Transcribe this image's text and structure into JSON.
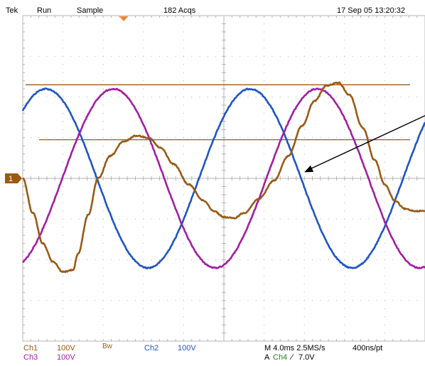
{
  "header": {
    "brand": "Tek",
    "run_state": "Run",
    "acq_mode": "Sample",
    "acq_count": "182 Acqs",
    "timestamp": "17 Sep 05 13:20:32"
  },
  "colors": {
    "ch1": "#9a5a14",
    "ch2": "#1f55c4",
    "ch3": "#a21ea2",
    "ch4": "#1a8a1a",
    "trigger_marker": "#f0822d",
    "grid": "#b4b4b4"
  },
  "readouts": {
    "ch1_label": "Ch1",
    "ch1_scale": "100V",
    "ch1_bw": "Bw",
    "ch2_label": "Ch2",
    "ch2_scale": "100V",
    "ch3_label": "Ch3",
    "ch3_scale": "100V",
    "timebase": "M 4.0ms 2.5MS/s",
    "record": "400ns/pt",
    "trigger_label": "A",
    "trigger_source": "Ch4",
    "trigger_slope": "∕",
    "trigger_level": "7.0V"
  },
  "chart_data": {
    "type": "line",
    "title": "",
    "xlabel": "",
    "ylabel": "",
    "x_unit": "ms",
    "y_unit": "div",
    "xlim": [
      0,
      40
    ],
    "ylim": [
      -4,
      4
    ],
    "grid": true,
    "divisions": {
      "x": 10,
      "y": 8
    },
    "ground_marker": "1",
    "cursor_levels": [
      {
        "name": "",
        "y": 2.3
      },
      {
        "name": "",
        "y": 0.95
      }
    ],
    "series": [
      {
        "id": "ch2",
        "name": "Ch2",
        "kind": "sine",
        "amplitude": 2.2,
        "period_ms": 20.3,
        "peak_at_ms": 2.3
      },
      {
        "id": "ch3",
        "name": "Ch3",
        "kind": "sine",
        "amplitude": 2.2,
        "period_ms": 20.3,
        "peak_at_ms": 9.0
      },
      {
        "id": "ch1",
        "name": "Ch1",
        "points": [
          [
            0,
            0.0
          ],
          [
            1.0,
            -0.85
          ],
          [
            2.0,
            -1.6
          ],
          [
            3.0,
            -2.05
          ],
          [
            4.0,
            -2.3
          ],
          [
            5.0,
            -2.25
          ],
          [
            5.5,
            -1.85
          ],
          [
            6.5,
            -0.9
          ],
          [
            7.5,
            0.0
          ],
          [
            8.7,
            0.55
          ],
          [
            10.0,
            0.9
          ],
          [
            11.3,
            1.05
          ],
          [
            12.5,
            1.0
          ],
          [
            13.7,
            0.75
          ],
          [
            15.0,
            0.35
          ],
          [
            16.5,
            -0.15
          ],
          [
            18.0,
            -0.55
          ],
          [
            19.0,
            -0.8
          ],
          [
            20.0,
            -0.95
          ],
          [
            21.0,
            -0.98
          ],
          [
            22.0,
            -0.85
          ],
          [
            23.5,
            -0.5
          ],
          [
            25.0,
            -0.05
          ],
          [
            26.4,
            0.55
          ],
          [
            27.8,
            1.3
          ],
          [
            29.0,
            1.9
          ],
          [
            30.2,
            2.28
          ],
          [
            31.4,
            2.35
          ],
          [
            32.5,
            2.05
          ],
          [
            33.8,
            1.25
          ],
          [
            35.0,
            0.45
          ],
          [
            36.0,
            -0.15
          ],
          [
            37.0,
            -0.55
          ],
          [
            38.0,
            -0.75
          ],
          [
            39.0,
            -0.8
          ],
          [
            40.0,
            -0.8
          ]
        ]
      }
    ],
    "annotations": [
      {
        "type": "arrow",
        "from": [
          40.0,
          1.55
        ],
        "to": [
          28.0,
          0.15
        ]
      }
    ]
  }
}
